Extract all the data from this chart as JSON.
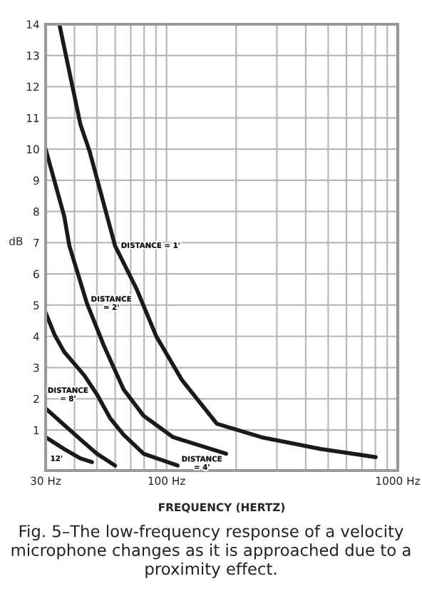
{
  "chart_data": {
    "type": "line",
    "xlabel": "FREQUENCY (HERTZ)",
    "ylabel": "dB",
    "log": "x",
    "xlim": [
      30,
      1000
    ],
    "ylim": [
      -0.3,
      14
    ],
    "xticks": [
      {
        "value": 30,
        "label": "30 Hz"
      },
      {
        "value": 40,
        "label": null
      },
      {
        "value": 50,
        "label": null
      },
      {
        "value": 60,
        "label": null
      },
      {
        "value": 70,
        "label": null
      },
      {
        "value": 80,
        "label": null
      },
      {
        "value": 90,
        "label": null
      },
      {
        "value": 100,
        "label": "100 Hz"
      },
      {
        "value": 200,
        "label": null
      },
      {
        "value": 300,
        "label": null
      },
      {
        "value": 400,
        "label": null
      },
      {
        "value": 500,
        "label": null
      },
      {
        "value": 600,
        "label": null
      },
      {
        "value": 700,
        "label": null
      },
      {
        "value": 800,
        "label": null
      },
      {
        "value": 900,
        "label": null
      },
      {
        "value": 1000,
        "label": "1000 Hz"
      }
    ],
    "yticks": [
      1,
      2,
      3,
      4,
      5,
      6,
      7,
      8,
      9,
      10,
      11,
      12,
      13,
      14
    ],
    "grid": true,
    "legend": false,
    "marker": "none",
    "line_style": "solid",
    "series": [
      {
        "name": "DISTANCE = 1'",
        "color": "#1a1a1a",
        "x": [
          34.4,
          42.4,
          46.6,
          59.9,
          74.4,
          90.3,
          116.6,
          165,
          257,
          464,
          803
        ],
        "values": [
          14,
          10.8,
          9.9,
          6.9,
          5.5,
          4.0,
          2.6,
          1.2,
          0.77,
          0.39,
          0.13
        ]
      },
      {
        "name": "DISTANCE\n= 2'",
        "color": "#1a1a1a",
        "x": [
          30,
          36.1,
          38.0,
          45.3,
          53.6,
          65.2,
          79.5,
          106.8,
          181
        ],
        "values": [
          10,
          7.85,
          6.9,
          5.05,
          3.7,
          2.3,
          1.46,
          0.77,
          0.24
        ]
      },
      {
        "name": "DISTANCE\n= 4'",
        "color": "#1a1a1a",
        "x": [
          30,
          32.8,
          36.1,
          44.1,
          50.0,
          57.0,
          65.2,
          79.5,
          111.6
        ],
        "values": [
          4.76,
          4.05,
          3.5,
          2.75,
          2.14,
          1.38,
          0.85,
          0.24,
          -0.14
        ]
      },
      {
        "name": "DISTANCE\n= 8'",
        "color": "#1a1a1a",
        "x": [
          30,
          36.1,
          42.4,
          50.0,
          59.9
        ],
        "values": [
          1.69,
          1.16,
          0.7,
          0.24,
          -0.14
        ]
      },
      {
        "name": "12'",
        "color": "#1a1a1a",
        "x": [
          30,
          36.1,
          42.4,
          47.6
        ],
        "values": [
          0.77,
          0.39,
          0.09,
          -0.03
        ]
      }
    ],
    "annotations": [
      "Fig. 5–The low-frequency response of a velocity microphone changes as it is approached due to a proximity effect."
    ]
  }
}
